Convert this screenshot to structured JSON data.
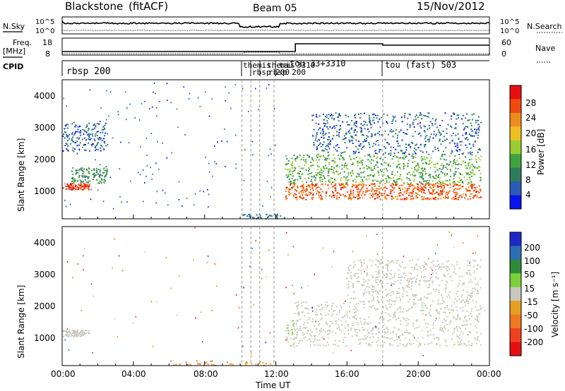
{
  "header": {
    "station": "Blackstone",
    "mode": "(fitACF)",
    "beam": "Beam 05",
    "date": "15/Nov/2012"
  },
  "noise_panel": {
    "left_label": "N.Sky",
    "left_ticks": [
      "10^5",
      "10^0"
    ],
    "right_label": "N.Search",
    "right_ticks": [
      "10^5",
      "10^0"
    ]
  },
  "freq_panel": {
    "left_label_line1": "Freq.",
    "left_label_line2": "[MHz]",
    "left_ticks": [
      "18",
      "8"
    ],
    "right_label": "Nave",
    "right_ticks": [
      "60",
      "0"
    ]
  },
  "cpid_panel": {
    "label": "CPID",
    "entries": [
      "rbsp 200",
      "themis",
      "rbsp 200",
      "themis",
      "tau",
      "3310",
      "rbsp 200",
      "tou 33+3310",
      "tou (fast) 503"
    ]
  },
  "power_panel": {
    "ylabel": "Slant Range [km]",
    "yticks": [
      "4000",
      "3000",
      "2000",
      "1000"
    ],
    "colorbar_label": "Power [dB]",
    "colorbar_ticks": [
      "28",
      "24",
      "20",
      "16",
      "12",
      "8",
      "4"
    ]
  },
  "velocity_panel": {
    "ylabel": "Slant Range [km]",
    "yticks": [
      "4000",
      "3000",
      "2000",
      "1000"
    ],
    "colorbar_label": "Velocity [m s⁻¹]",
    "colorbar_ticks": [
      "200",
      "100",
      "50",
      "15",
      "-15",
      "-50",
      "-100",
      "-200"
    ]
  },
  "x_axis": {
    "label": "Time UT",
    "ticks": [
      "00:00",
      "04:00",
      "08:00",
      "12:00",
      "16:00",
      "20:00",
      "00:00"
    ]
  },
  "colors": {
    "power_scale": [
      "#0a14f0",
      "#2a5cb8",
      "#2e7d5a",
      "#3fa33f",
      "#9acd32",
      "#f0c020",
      "#f08c1e",
      "#f04a10",
      "#e61010"
    ],
    "velocity_scale": [
      "#1e28c8",
      "#2e6eb4",
      "#2f8a3a",
      "#7cd13a",
      "#c8c8be",
      "#e6a020",
      "#f07820",
      "#f04020",
      "#e61010"
    ]
  },
  "chart_data": [
    {
      "type": "heatmap",
      "title": "Power",
      "xlabel": "Time UT",
      "ylabel": "Slant Range [km]",
      "xlim": [
        "00:00",
        "24:00"
      ],
      "ylim": [
        180,
        4500
      ],
      "colorbar": {
        "label": "Power [dB]",
        "range": [
          0,
          30
        ]
      },
      "features": [
        {
          "time_range": [
            "00:00",
            "01:30"
          ],
          "range_km": [
            1100,
            1300
          ],
          "power_db": 26
        },
        {
          "time_range": [
            "00:30",
            "02:30"
          ],
          "range_km": [
            1300,
            1800
          ],
          "power_db": 10
        },
        {
          "time_range": [
            "00:00",
            "02:30"
          ],
          "range_km": [
            2300,
            3200
          ],
          "power_db": 6
        },
        {
          "time_range": [
            "12:30",
            "23:30"
          ],
          "range_km": [
            800,
            1300
          ],
          "power_db": 24
        },
        {
          "time_range": [
            "12:30",
            "23:30"
          ],
          "range_km": [
            1300,
            2200
          ],
          "power_db": 12
        },
        {
          "time_range": [
            "14:00",
            "23:30"
          ],
          "range_km": [
            2200,
            3500
          ],
          "power_db": 6
        }
      ]
    },
    {
      "type": "heatmap",
      "title": "Velocity",
      "xlabel": "Time UT",
      "ylabel": "Slant Range [km]",
      "xlim": [
        "00:00",
        "24:00"
      ],
      "ylim": [
        180,
        4500
      ],
      "colorbar": {
        "label": "Velocity [m s⁻¹]",
        "range": [
          -250,
          250
        ]
      },
      "features": [
        {
          "time_range": [
            "00:00",
            "01:30"
          ],
          "range_km": [
            1100,
            1300
          ],
          "velocity": 0
        },
        {
          "time_range": [
            "12:30",
            "13:00"
          ],
          "range_km": [
            800,
            1600
          ],
          "velocity": 30
        },
        {
          "time_range": [
            "13:00",
            "23:30"
          ],
          "range_km": [
            800,
            2200
          ],
          "velocity": 0
        },
        {
          "time_range": [
            "16:00",
            "23:30"
          ],
          "range_km": [
            2200,
            3500
          ],
          "velocity": -10
        }
      ]
    }
  ]
}
